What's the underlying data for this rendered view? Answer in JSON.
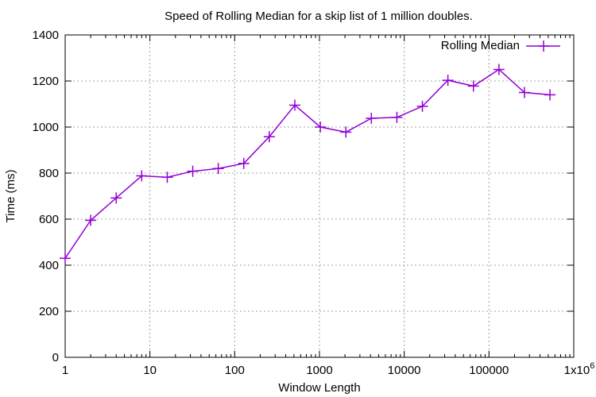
{
  "chart_data": {
    "type": "line",
    "title": "Speed of Rolling Median for a skip list of 1 million doubles.",
    "xlabel": "Window Length",
    "ylabel": "Time (ms)",
    "x_scale": "log",
    "xlim": [
      1,
      1000000
    ],
    "ylim": [
      0,
      1400
    ],
    "grid": true,
    "legend_position": "top-right",
    "x_ticks": [
      {
        "value": 1,
        "label": "1",
        "sup": ""
      },
      {
        "value": 10,
        "label": "10",
        "sup": ""
      },
      {
        "value": 100,
        "label": "100",
        "sup": ""
      },
      {
        "value": 1000,
        "label": "1000",
        "sup": ""
      },
      {
        "value": 10000,
        "label": "10000",
        "sup": ""
      },
      {
        "value": 100000,
        "label": "100000",
        "sup": ""
      },
      {
        "value": 1000000,
        "label": "1x10",
        "sup": "6"
      }
    ],
    "y_ticks": [
      0,
      200,
      400,
      600,
      800,
      1000,
      1200,
      1400
    ],
    "series": [
      {
        "name": "Rolling Median",
        "color": "#9400d3",
        "marker": "plus",
        "x": [
          1,
          2,
          4,
          8,
          16,
          32,
          64,
          128,
          256,
          512,
          1024,
          2048,
          4096,
          8192,
          16384,
          32768,
          65536,
          131072,
          262144,
          524288
        ],
        "y": [
          430,
          595,
          692,
          788,
          782,
          808,
          820,
          842,
          958,
          1095,
          1000,
          978,
          1038,
          1042,
          1090,
          1203,
          1178,
          1250,
          1150,
          1140
        ]
      }
    ]
  }
}
